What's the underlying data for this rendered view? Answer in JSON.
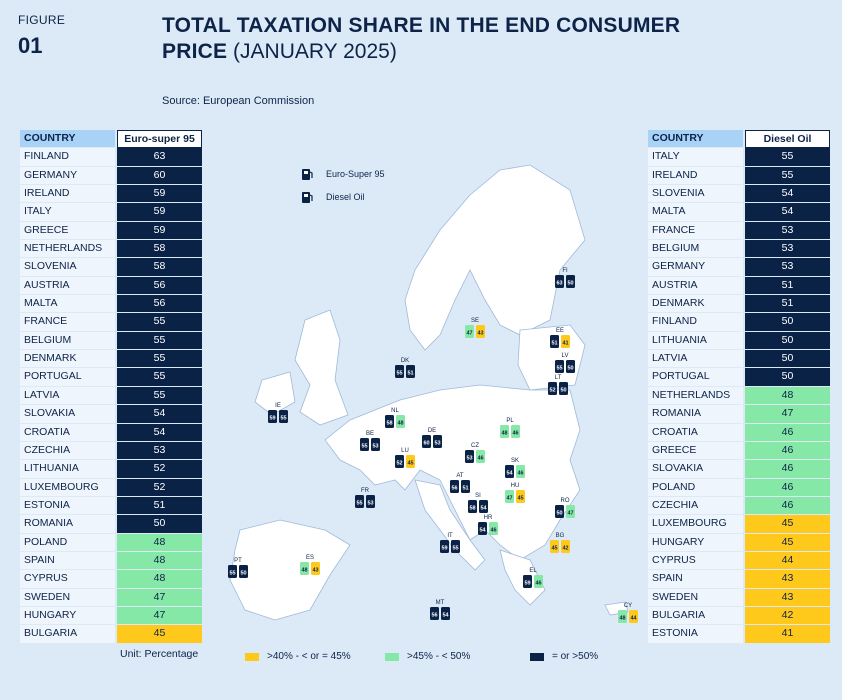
{
  "figure": {
    "label": "FIGURE",
    "number": "01"
  },
  "title_bold": "TOTAL TAXATION SHARE IN THE END CONSUMER PRICE",
  "title_rest": "(JANUARY 2025)",
  "source": "Source: European Commission",
  "unit": "Unit: Percentage",
  "map_key": {
    "petrol": "Euro-Super 95",
    "diesel": "Diesel Oil"
  },
  "legend": [
    {
      "label": ">40% - < or = 45%",
      "color": "#ffc91c"
    },
    {
      "label": ">45% - < 50%",
      "color": "#86e8a6"
    },
    {
      "label": "= or >50%",
      "color": "#0b2247"
    }
  ],
  "chart_data": [
    {
      "type": "table",
      "title": "Euro-super 95",
      "columns": [
        "COUNTRY",
        "Euro-super 95"
      ],
      "categories": [
        "FINLAND",
        "GERMANY",
        "IRELAND",
        "ITALY",
        "GREECE",
        "NETHERLANDS",
        "SLOVENIA",
        "AUSTRIA",
        "MALTA",
        "FRANCE",
        "BELGIUM",
        "DENMARK",
        "PORTUGAL",
        "LATVIA",
        "SLOVAKIA",
        "CROATIA",
        "CZECHIA",
        "LITHUANIA",
        "LUXEMBOURG",
        "ESTONIA",
        "ROMANIA",
        "POLAND",
        "SPAIN",
        "CYPRUS",
        "SWEDEN",
        "HUNGARY",
        "BULGARIA"
      ],
      "values": [
        63,
        60,
        59,
        59,
        59,
        58,
        58,
        56,
        56,
        55,
        55,
        55,
        55,
        55,
        54,
        54,
        53,
        52,
        52,
        51,
        50,
        48,
        48,
        48,
        47,
        47,
        45
      ]
    },
    {
      "type": "table",
      "title": "Diesel Oil",
      "columns": [
        "COUNTRY",
        "Diesel Oil"
      ],
      "categories": [
        "ITALY",
        "IRELAND",
        "SLOVENIA",
        "MALTA",
        "FRANCE",
        "BELGIUM",
        "GERMANY",
        "AUSTRIA",
        "DENMARK",
        "FINLAND",
        "LITHUANIA",
        "LATVIA",
        "PORTUGAL",
        "NETHERLANDS",
        "ROMANIA",
        "CROATIA",
        "GREECE",
        "SLOVAKIA",
        "POLAND",
        "CZECHIA",
        "LUXEMBOURG",
        "HUNGARY",
        "CYPRUS",
        "SPAIN",
        "SWEDEN",
        "BULGARIA",
        "ESTONIA"
      ],
      "values": [
        55,
        55,
        54,
        54,
        53,
        53,
        53,
        51,
        51,
        50,
        50,
        50,
        50,
        48,
        47,
        46,
        46,
        46,
        46,
        46,
        45,
        45,
        44,
        43,
        43,
        42,
        41
      ]
    },
    {
      "type": "map",
      "markers": [
        {
          "code": "FI",
          "petrol": 63,
          "diesel": 50
        },
        {
          "code": "SE",
          "petrol": 47,
          "diesel": 43
        },
        {
          "code": "EE",
          "petrol": 51,
          "diesel": 41
        },
        {
          "code": "LV",
          "petrol": 55,
          "diesel": 50
        },
        {
          "code": "LT",
          "petrol": 52,
          "diesel": 50
        },
        {
          "code": "DK",
          "petrol": 55,
          "diesel": 51
        },
        {
          "code": "IE",
          "petrol": 59,
          "diesel": 55
        },
        {
          "code": "NL",
          "petrol": 58,
          "diesel": 48
        },
        {
          "code": "BE",
          "petrol": 55,
          "diesel": 53
        },
        {
          "code": "LU",
          "petrol": 52,
          "diesel": 45
        },
        {
          "code": "DE",
          "petrol": 60,
          "diesel": 53
        },
        {
          "code": "PL",
          "petrol": 48,
          "diesel": 46
        },
        {
          "code": "CZ",
          "petrol": 53,
          "diesel": 46
        },
        {
          "code": "SK",
          "petrol": 54,
          "diesel": 46
        },
        {
          "code": "AT",
          "petrol": 56,
          "diesel": 51
        },
        {
          "code": "HU",
          "petrol": 47,
          "diesel": 45
        },
        {
          "code": "RO",
          "petrol": 50,
          "diesel": 47
        },
        {
          "code": "SI",
          "petrol": 58,
          "diesel": 54
        },
        {
          "code": "HR",
          "petrol": 54,
          "diesel": 46
        },
        {
          "code": "FR",
          "petrol": 55,
          "diesel": 53
        },
        {
          "code": "IT",
          "petrol": 59,
          "diesel": 55
        },
        {
          "code": "BG",
          "petrol": 45,
          "diesel": 42
        },
        {
          "code": "PT",
          "petrol": 55,
          "diesel": 50
        },
        {
          "code": "ES",
          "petrol": 48,
          "diesel": 43
        },
        {
          "code": "EL",
          "petrol": 59,
          "diesel": 46
        },
        {
          "code": "MT",
          "petrol": 56,
          "diesel": 54
        },
        {
          "code": "CY",
          "petrol": 48,
          "diesel": 44
        }
      ]
    }
  ]
}
